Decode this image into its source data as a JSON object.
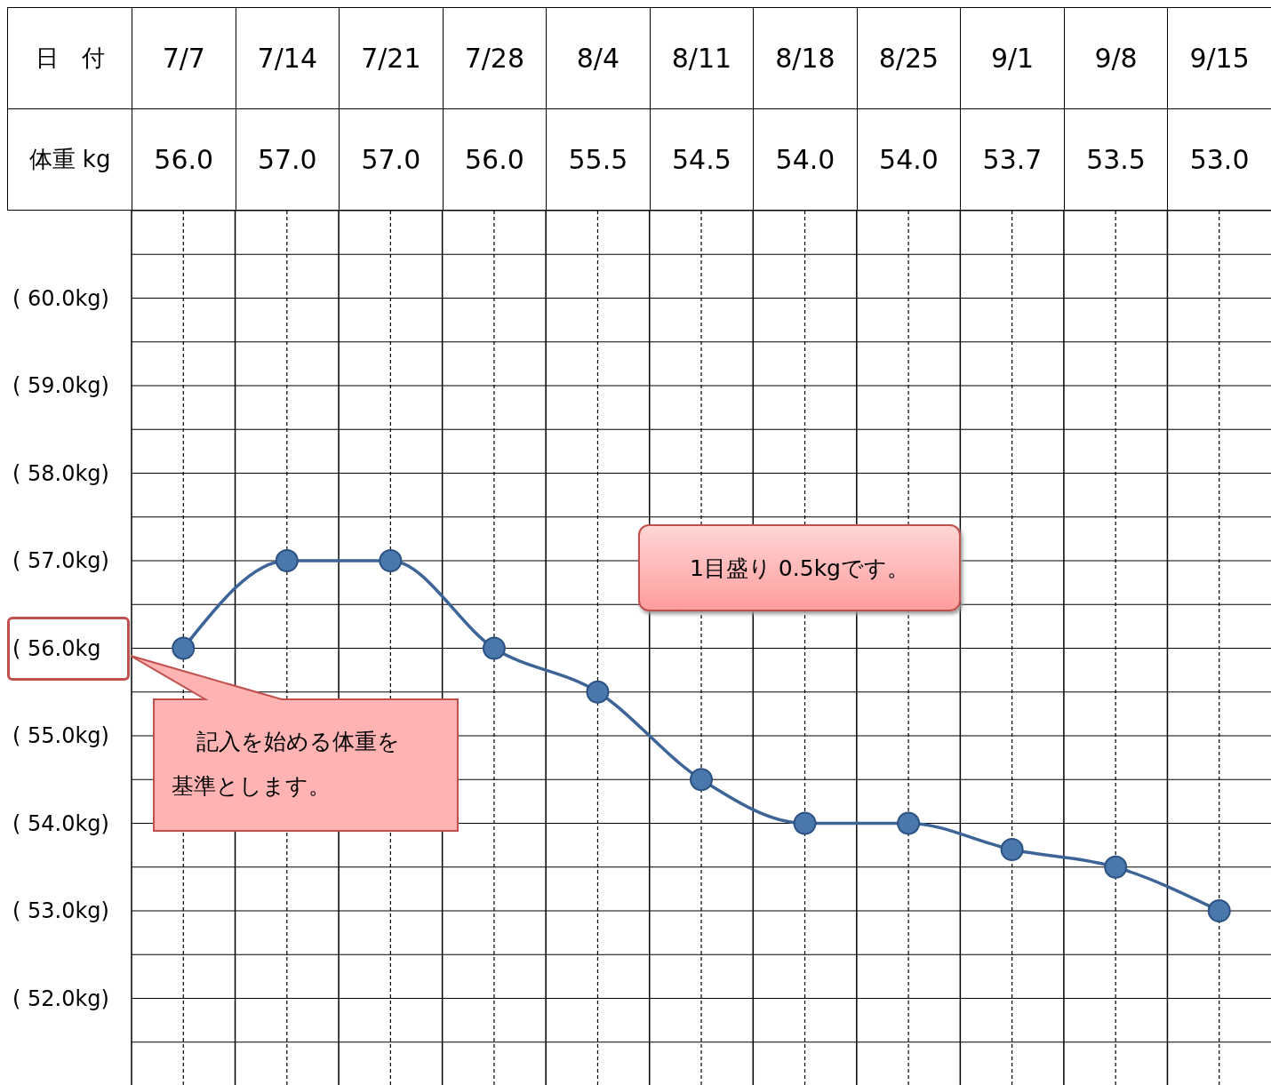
{
  "chart_data": {
    "type": "line",
    "xlabel": "日　付",
    "ylabel": "体重 kg",
    "categories": [
      "7/7",
      "7/14",
      "7/21",
      "7/28",
      "8/4",
      "8/11",
      "8/18",
      "8/25",
      "9/1",
      "9/8",
      "9/15"
    ],
    "values": [
      56.0,
      57.0,
      57.0,
      56.0,
      55.5,
      54.5,
      54.0,
      54.0,
      53.7,
      53.5,
      53.0
    ],
    "value_labels": [
      "56.0",
      "57.0",
      "57.0",
      "56.0",
      "55.5",
      "54.5",
      "54.0",
      "54.0",
      "53.7",
      "53.5",
      "53.0"
    ],
    "color": "#3d6496",
    "marker": "circle",
    "line_style": "solid",
    "grid": true,
    "ylim": [
      51,
      61
    ],
    "yticks": [
      {
        "value": 51,
        "label": null
      },
      {
        "value": 51.5,
        "label": null
      },
      {
        "value": 52,
        "label": "( 52.0kg)"
      },
      {
        "value": 52.5,
        "label": null
      },
      {
        "value": 53,
        "label": "( 53.0kg)"
      },
      {
        "value": 53.5,
        "label": null
      },
      {
        "value": 54,
        "label": "( 54.0kg)"
      },
      {
        "value": 54.5,
        "label": null
      },
      {
        "value": 55,
        "label": "( 55.0kg)"
      },
      {
        "value": 55.5,
        "label": null
      },
      {
        "value": 56,
        "label": "( 56.0kg"
      },
      {
        "value": 56.5,
        "label": null
      },
      {
        "value": 57,
        "label": "( 57.0kg)"
      },
      {
        "value": 57.5,
        "label": null
      },
      {
        "value": 58,
        "label": "( 58.0kg)"
      },
      {
        "value": 58.5,
        "label": null
      },
      {
        "value": 59,
        "label": "( 59.0kg)"
      },
      {
        "value": 59.5,
        "label": null
      },
      {
        "value": 60,
        "label": "( 60.0kg)"
      },
      {
        "value": 60.5,
        "label": null
      },
      {
        "value": 61,
        "label": null
      }
    ],
    "annotations": [
      "1目盛り 0.5kgです。",
      "記入を始める体重を基準とします。"
    ]
  }
}
